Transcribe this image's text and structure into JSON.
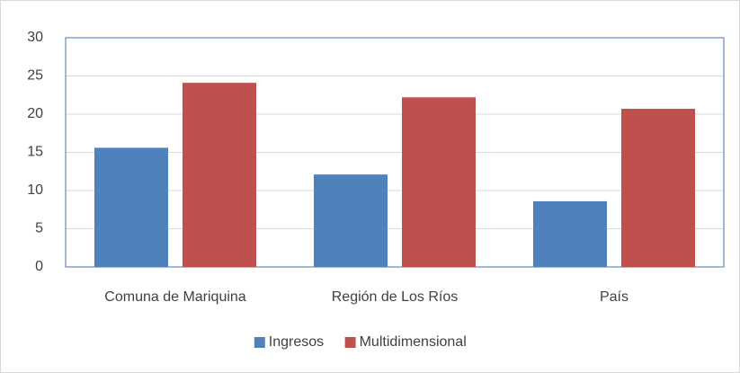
{
  "chart_data": {
    "type": "bar",
    "categories": [
      "Comuna de Mariquina",
      "Región de Los Ríos",
      "País"
    ],
    "series": [
      {
        "name": "Ingresos",
        "color": "#4f81bd",
        "values": [
          15.6,
          12.1,
          8.6
        ]
      },
      {
        "name": "Multidimensional",
        "color": "#c0504d",
        "values": [
          24.1,
          22.2,
          20.7
        ]
      }
    ],
    "ylim": [
      0,
      30
    ],
    "yticks": [
      0,
      5,
      10,
      15,
      20,
      25,
      30
    ],
    "grid": true,
    "legend": "bottom"
  }
}
